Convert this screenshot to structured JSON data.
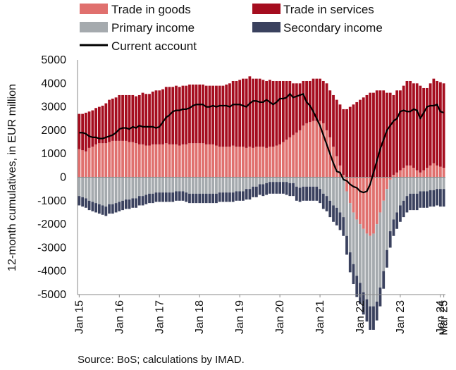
{
  "chart_data": {
    "type": "bar",
    "ylabel": "12-month cumulatives, in EUR million",
    "ylim": [
      -5000,
      5000
    ],
    "y_ticks": [
      5000,
      4000,
      3000,
      2000,
      1000,
      0,
      -1000,
      -2000,
      -3000,
      -4000,
      -5000
    ],
    "x_tick_labels": [
      "Jan 15",
      "Jan 16",
      "Jan 17",
      "Jan 18",
      "Jan 19",
      "Jan 20",
      "Jan 21",
      "Jan 22",
      "Jan 23",
      "Jan 24",
      "Mar 25"
    ],
    "legend_position": "top",
    "source": "Source: BoS; calculations by IMAD.",
    "colors": {
      "goods": "#e0706e",
      "services": "#a50d1f",
      "primary": "#a5aaae",
      "secondary": "#3a415e",
      "current": "#000000"
    },
    "series": [
      {
        "name": "Trade in goods",
        "kind": "bar",
        "color": "#e0706e",
        "values": [
          1200,
          1150,
          1100,
          1250,
          1300,
          1400,
          1450,
          1450,
          1450,
          1500,
          1550,
          1550,
          1550,
          1550,
          1550,
          1500,
          1500,
          1450,
          1400,
          1400,
          1350,
          1350,
          1400,
          1400,
          1400,
          1400,
          1450,
          1400,
          1400,
          1400,
          1350,
          1400,
          1400,
          1450,
          1450,
          1450,
          1450,
          1450,
          1400,
          1400,
          1400,
          1350,
          1300,
          1300,
          1300,
          1300,
          1350,
          1300,
          1300,
          1300,
          1250,
          1300,
          1250,
          1300,
          1300,
          1300,
          1250,
          1300,
          1300,
          1350,
          1400,
          1500,
          1600,
          1700,
          1800,
          1900,
          2000,
          2200,
          2300,
          2350,
          2400,
          2400,
          2400,
          2300,
          2000,
          1700,
          1300,
          900,
          500,
          100,
          -600,
          -1100,
          -1500,
          -1800,
          -2000,
          -2200,
          -2400,
          -2500,
          -2400,
          -2000,
          -1500,
          -1000,
          -500,
          -100,
          100,
          200,
          300,
          400,
          500,
          500,
          400,
          300,
          200,
          300,
          400,
          500,
          600,
          500,
          450,
          400
        ]
      },
      {
        "name": "Trade in services",
        "kind": "bar",
        "color": "#a50d1f",
        "values": [
          1500,
          1550,
          1650,
          1550,
          1550,
          1550,
          1550,
          1600,
          1700,
          1800,
          1800,
          1850,
          1950,
          1950,
          1950,
          2000,
          2000,
          2000,
          2100,
          2200,
          2200,
          2200,
          2250,
          2300,
          2300,
          2350,
          2400,
          2450,
          2450,
          2500,
          2500,
          2500,
          2500,
          2500,
          2500,
          2500,
          2500,
          2500,
          2500,
          2500,
          2500,
          2550,
          2600,
          2600,
          2650,
          2700,
          2750,
          2800,
          2850,
          2900,
          2950,
          3000,
          2950,
          2900,
          2900,
          2850,
          2850,
          2850,
          2800,
          2750,
          2700,
          2600,
          2500,
          2400,
          2200,
          2100,
          2000,
          1900,
          1800,
          1750,
          1800,
          1800,
          1800,
          1800,
          2000,
          2000,
          2200,
          2400,
          2600,
          2800,
          2900,
          3000,
          3100,
          3200,
          3300,
          3400,
          3500,
          3600,
          3600,
          3700,
          3700,
          3700,
          3600,
          3600,
          3400,
          3500,
          3400,
          3500,
          3600,
          3600,
          3600,
          3700,
          3700,
          3500,
          3400,
          3500,
          3600,
          3600,
          3600,
          3600
        ]
      },
      {
        "name": "Primary income",
        "kind": "bar",
        "color": "#a5aaae",
        "values": [
          -800,
          -850,
          -900,
          -1000,
          -1050,
          -1100,
          -1150,
          -1200,
          -1250,
          -1150,
          -1150,
          -1100,
          -1050,
          -1000,
          -950,
          -950,
          -900,
          -900,
          -800,
          -800,
          -750,
          -700,
          -700,
          -650,
          -650,
          -650,
          -650,
          -650,
          -650,
          -600,
          -600,
          -600,
          -650,
          -700,
          -700,
          -700,
          -700,
          -700,
          -700,
          -700,
          -700,
          -700,
          -650,
          -650,
          -650,
          -650,
          -650,
          -600,
          -600,
          -600,
          -500,
          -500,
          -400,
          -400,
          -300,
          -300,
          -250,
          -200,
          -200,
          -200,
          -200,
          -200,
          -200,
          -250,
          -250,
          -400,
          -450,
          -400,
          -400,
          -400,
          -400,
          -400,
          -500,
          -700,
          -800,
          -1000,
          -1200,
          -1300,
          -1500,
          -1700,
          -1900,
          -2100,
          -2200,
          -2400,
          -2500,
          -2700,
          -2800,
          -3000,
          -3100,
          -3300,
          -3200,
          -3000,
          -2600,
          -2200,
          -1800,
          -1500,
          -1200,
          -1000,
          -800,
          -700,
          -700,
          -700,
          -600,
          -600,
          -600,
          -550,
          -550,
          -500,
          -500,
          -500
        ]
      },
      {
        "name": "Secondary income",
        "kind": "bar",
        "color": "#3a415e",
        "values": [
          -400,
          -400,
          -400,
          -400,
          -400,
          -400,
          -400,
          -400,
          -400,
          -400,
          -400,
          -400,
          -400,
          -400,
          -400,
          -400,
          -400,
          -400,
          -400,
          -400,
          -400,
          -400,
          -400,
          -400,
          -400,
          -400,
          -400,
          -400,
          -400,
          -400,
          -400,
          -400,
          -400,
          -400,
          -400,
          -400,
          -400,
          -400,
          -400,
          -400,
          -400,
          -400,
          -400,
          -400,
          -400,
          -400,
          -400,
          -400,
          -400,
          -400,
          -450,
          -450,
          -450,
          -450,
          -450,
          -500,
          -500,
          -500,
          -500,
          -500,
          -500,
          -500,
          -550,
          -550,
          -550,
          -600,
          -600,
          -600,
          -600,
          -600,
          -600,
          -600,
          -600,
          -650,
          -650,
          -700,
          -700,
          -750,
          -750,
          -800,
          -800,
          -850,
          -850,
          -900,
          -900,
          -950,
          -950,
          -1000,
          -1000,
          -800,
          -800,
          -750,
          -750,
          -700,
          -700,
          -700,
          -700,
          -700,
          -700,
          -700,
          -700,
          -700,
          -700,
          -700,
          -700,
          -700,
          -700,
          -700,
          -750,
          -750
        ]
      },
      {
        "name": "Current account",
        "kind": "line",
        "color": "#000000",
        "values": [
          1900,
          1900,
          1850,
          1750,
          1700,
          1700,
          1650,
          1650,
          1700,
          1750,
          1800,
          1900,
          2050,
          2100,
          2100,
          2050,
          2150,
          2100,
          2200,
          2150,
          2150,
          2150,
          2150,
          2100,
          2150,
          2350,
          2550,
          2650,
          2800,
          2850,
          2850,
          2900,
          2900,
          2950,
          3050,
          3100,
          3100,
          3100,
          3000,
          3000,
          3050,
          3000,
          3050,
          3050,
          3050,
          3000,
          3100,
          3100,
          3100,
          3050,
          3000,
          3150,
          3250,
          3250,
          3200,
          3200,
          3300,
          3200,
          3100,
          3200,
          3350,
          3350,
          3400,
          3550,
          3400,
          3450,
          3500,
          3550,
          3200,
          3050,
          2800,
          2500,
          2200,
          1800,
          1400,
          1000,
          600,
          250,
          200,
          -100,
          -150,
          -300,
          -400,
          -450,
          -600,
          -650,
          -600,
          -300,
          200,
          700,
          1200,
          1600,
          2000,
          2200,
          2400,
          2500,
          2800,
          2850,
          2800,
          2800,
          2900,
          2850,
          2500,
          2750,
          3000,
          3050,
          3050,
          3100,
          2800,
          2750
        ]
      }
    ],
    "legend": [
      {
        "label": "Trade in goods",
        "type": "box",
        "color": "#e0706e"
      },
      {
        "label": "Trade in services",
        "type": "box",
        "color": "#a50d1f"
      },
      {
        "label": "Primary income",
        "type": "box",
        "color": "#a5aaae"
      },
      {
        "label": "Secondary income",
        "type": "box",
        "color": "#3a415e"
      },
      {
        "label": "Current account",
        "type": "line",
        "color": "#000000"
      }
    ]
  }
}
